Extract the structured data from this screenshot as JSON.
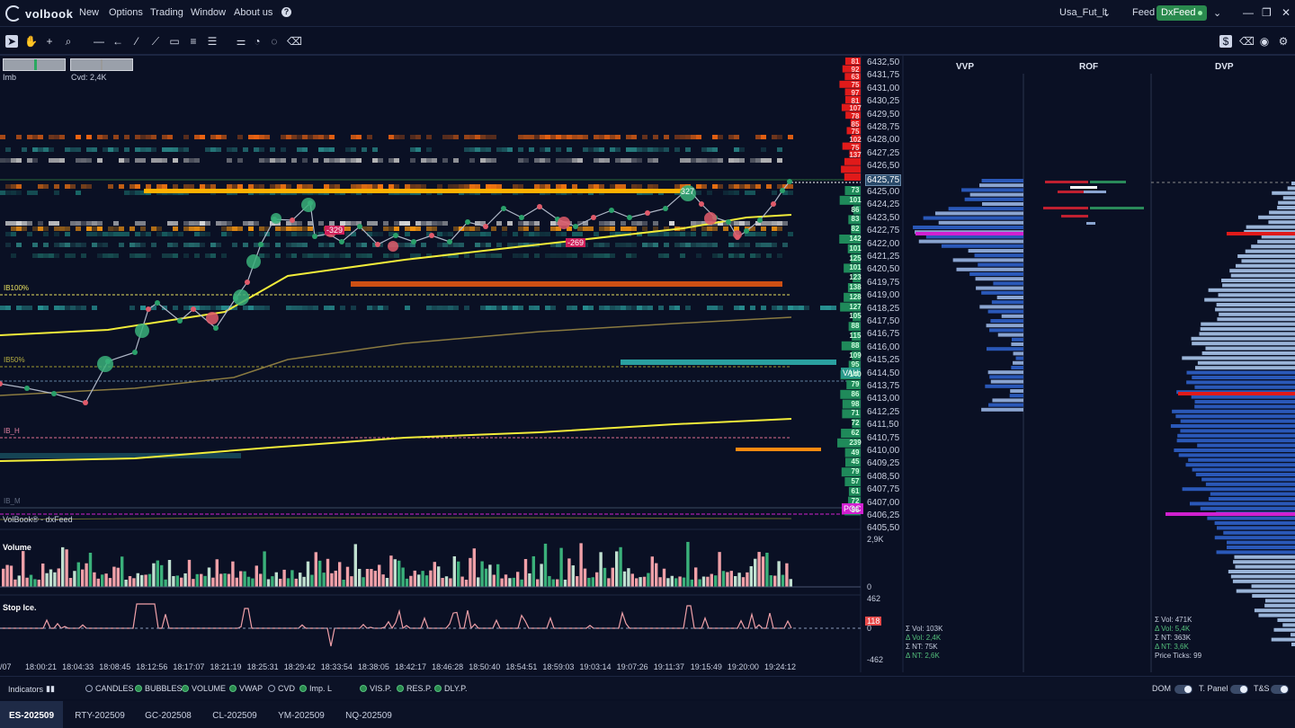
{
  "app": {
    "name": "volbook"
  },
  "menu": [
    "New",
    "Options",
    "Trading",
    "Window",
    "About us"
  ],
  "workspace": "Usa_Fut_lt",
  "feed_label": "Feed",
  "feed_name": "DxFeed",
  "indicators_top": {
    "imb_label": "Imb",
    "cvd_label": "Cvd: 2,4K"
  },
  "chart_labels": {
    "ib100": "IB100%",
    "ib50": "IB50%",
    "ib_h": "IB_H",
    "ib_m": "IB_M",
    "source": "VolBook® - dxFeed",
    "bubble1": "327",
    "bubble2": "-329",
    "bubble3": "-269",
    "vah": "VAH",
    "poc": "POC",
    "last_price": "6425,75"
  },
  "prices": [
    "6432,50",
    "6431,75",
    "6431,00",
    "6430,25",
    "6429,50",
    "6428,75",
    "6428,00",
    "6427,25",
    "6426,50",
    "6425,75",
    "6425,00",
    "6424,25",
    "6423,50",
    "6422,75",
    "6422,00",
    "6421,25",
    "6420,50",
    "6419,75",
    "6419,00",
    "6418,25",
    "6417,50",
    "6416,75",
    "6416,00",
    "6415,25",
    "6414,50",
    "6413,75",
    "6413,00",
    "6412,25",
    "6411,50",
    "6410,75",
    "6410,00",
    "6409,25",
    "6408,50",
    "6407,75",
    "6407,00",
    "6406,25",
    "6405,50"
  ],
  "ask_ladder": [
    "81",
    "92",
    "63",
    "75",
    "97",
    "81",
    "107",
    "78",
    "85",
    "75",
    "102",
    "75",
    "137"
  ],
  "bid_ladder": [
    "73",
    "101",
    "86",
    "83",
    "82",
    "142",
    "101",
    "125",
    "101",
    "123",
    "138",
    "128",
    "127",
    "105",
    "88",
    "115",
    "88",
    "109",
    "95",
    "140",
    "79",
    "86",
    "98",
    "71",
    "72",
    "62",
    "239",
    "49",
    "45",
    "79",
    "57",
    "61",
    "72",
    "56"
  ],
  "volume_panel": {
    "title": "Volume",
    "max": "2,9K",
    "min": "0"
  },
  "stop_ice_panel": {
    "title": "Stop Ice.",
    "max": "462",
    "zero": "0",
    "min": "-462",
    "value": "118"
  },
  "profile_titles": {
    "vvp": "VVP",
    "rof": "ROF",
    "dvp": "DVP"
  },
  "vvp_stats": [
    "Σ Vol: 103K",
    "Δ Vol: 2,4K",
    "Σ NT: 75K",
    "Δ NT: 2,6K"
  ],
  "dvp_stats": [
    "Σ Vol: 471K",
    "Δ Vol: 5,4K",
    "Σ NT: 363K",
    "Δ NT: 3,6K",
    "Price Ticks: 99"
  ],
  "times": [
    "/07",
    "18:00:21",
    "18:04:33",
    "18:08:45",
    "18:12:56",
    "18:17:07",
    "18:21:19",
    "18:25:31",
    "18:29:42",
    "18:33:54",
    "18:38:05",
    "18:42:17",
    "18:46:28",
    "18:50:40",
    "18:54:51",
    "18:59:03",
    "19:03:14",
    "19:07:26",
    "19:11:37",
    "19:15:49",
    "19:20:00",
    "19:24:12"
  ],
  "indicators_bar": {
    "label": "Indicators",
    "items": [
      {
        "label": "CANDLES",
        "on": false
      },
      {
        "label": "BUBBLES",
        "on": true
      },
      {
        "label": "VOLUME",
        "on": true
      },
      {
        "label": "VWAP",
        "on": true
      },
      {
        "label": "CVD",
        "on": false
      },
      {
        "label": "Imp. L",
        "on": true
      },
      {
        "label": "VIS.P.",
        "on": true
      },
      {
        "label": "RES.P.",
        "on": true
      },
      {
        "label": "DLY.P.",
        "on": true
      }
    ],
    "toggles": [
      "DOM",
      "T. Panel",
      "T&S"
    ]
  },
  "tabs": [
    "ES-202509",
    "RTY-202509",
    "GC-202508",
    "CL-202509",
    "YM-202509",
    "NQ-202509"
  ],
  "colors": {
    "bg": "#0a1024",
    "ask": "#e01a1a",
    "bid": "#1f8a5a",
    "vwap": "#f2ec3a",
    "poc": "#d020d0"
  }
}
